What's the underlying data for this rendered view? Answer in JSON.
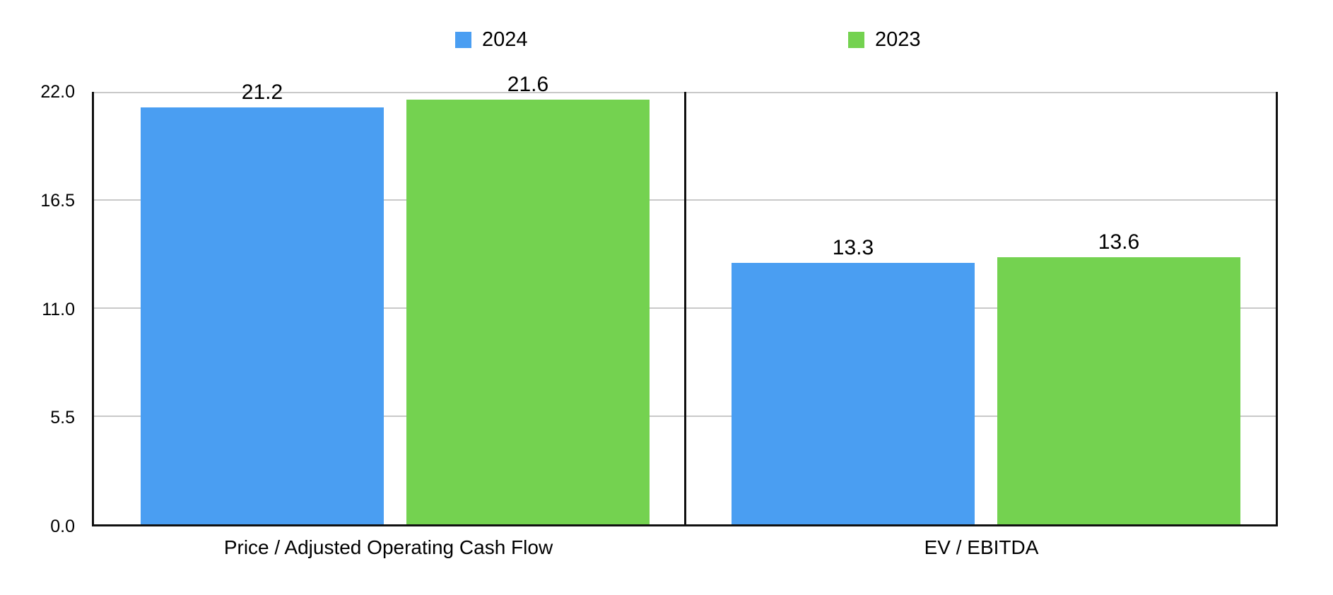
{
  "chart_data": {
    "type": "bar",
    "title": "",
    "categories": [
      "Price / Adjusted Operating Cash Flow",
      "EV / EBITDA"
    ],
    "series": [
      {
        "name": "2024",
        "color": "#4A9EF2",
        "values": [
          21.2,
          13.3
        ]
      },
      {
        "name": "2023",
        "color": "#74D250",
        "values": [
          21.6,
          13.6
        ]
      }
    ],
    "ylim": [
      0,
      22
    ],
    "ytick_labels": [
      "22.0",
      "16.5",
      "11.0",
      "5.5",
      "0.0"
    ],
    "grid": true,
    "legend_position": "top",
    "panel_divider": true,
    "axis_color": "#111111",
    "gridline_color": "#c9c9c9",
    "background_color": "#ffffff"
  }
}
